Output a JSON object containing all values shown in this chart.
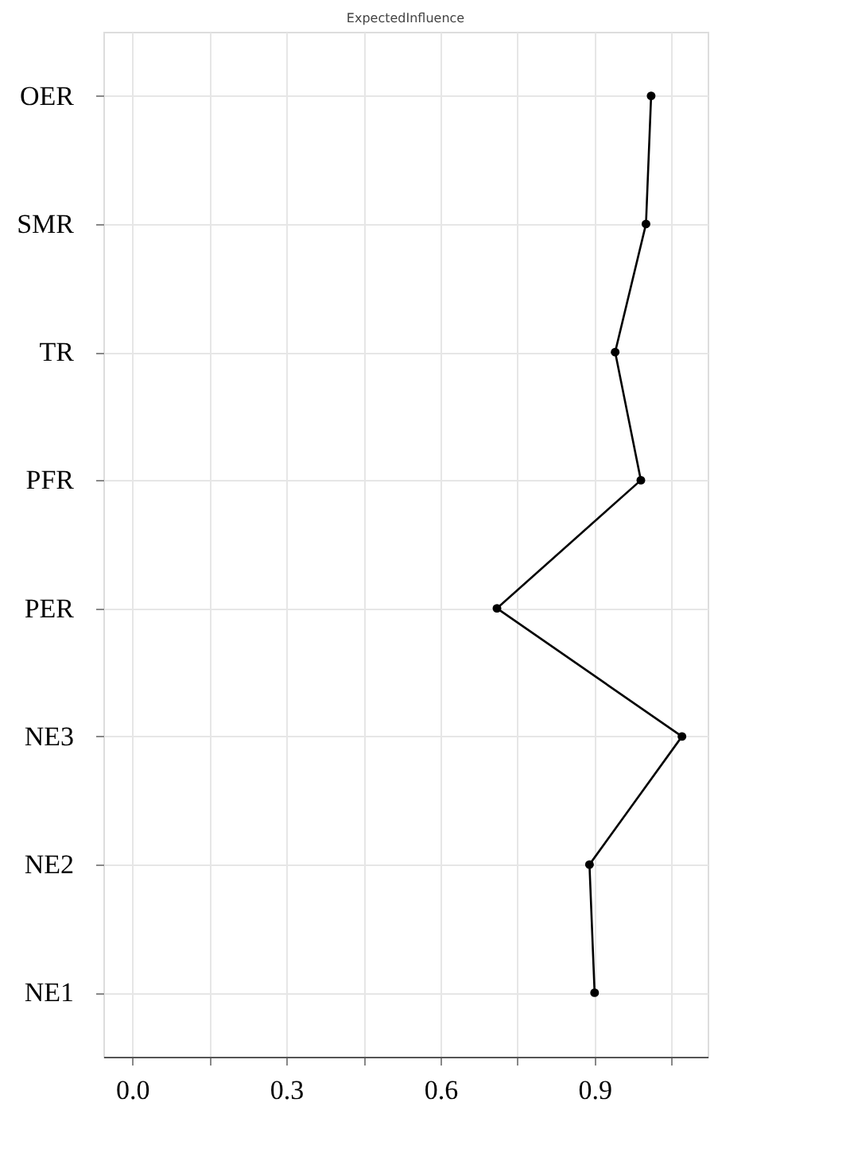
{
  "chart_data": {
    "type": "line",
    "orientation": "horizontal",
    "title": "ExpectedInfluence",
    "categories": [
      "OER",
      "SMR",
      "TR",
      "PFR",
      "PER",
      "NE3",
      "NE2",
      "NE1"
    ],
    "series": [
      {
        "color": "#000000",
        "values": [
          1.01,
          1.0,
          0.94,
          0.99,
          0.71,
          1.07,
          0.89,
          0.9
        ]
      }
    ],
    "xlim": [
      -0.056,
      1.12
    ],
    "xticks": [
      {
        "value": 0,
        "label": "0.0"
      },
      {
        "value": 0.15,
        "label": null
      },
      0.3,
      {
        "value": 0.45,
        "label": null
      },
      0.6,
      {
        "value": 0.75,
        "label": null
      },
      0.9,
      {
        "value": 1.05,
        "label": null
      }
    ],
    "grid": true,
    "marker": "circle",
    "line_style": "solid"
  }
}
